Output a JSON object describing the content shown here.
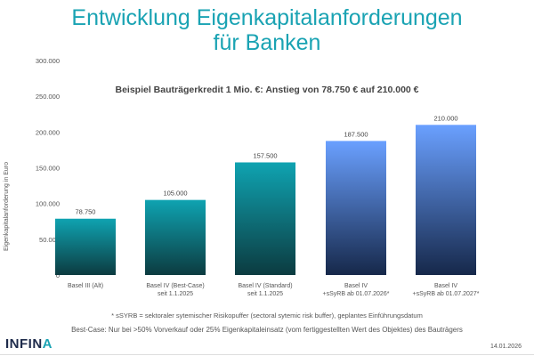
{
  "title_line1": "Entwicklung Eigenkapitalanforderungen",
  "title_line2": "für Banken",
  "chart_data": {
    "type": "bar",
    "title": "Beispiel Bauträgerkredit 1 Mio. €: Anstieg von 78.750 € auf 210.000 €",
    "ylabel": "Eigenkapitalanforderung in Euro",
    "xlabel": "",
    "ylim": [
      0,
      300000
    ],
    "yticks": [
      "0",
      "50.000",
      "100.000",
      "150.000",
      "200.000",
      "250.000",
      "300.000"
    ],
    "ytick_values": [
      0,
      50000,
      100000,
      150000,
      200000,
      250000,
      300000
    ],
    "grid": false,
    "categories": [
      [
        "Basel III (Alt)"
      ],
      [
        "Basel IV (Best-Case)",
        "seit 1.1.2025"
      ],
      [
        "Basel IV (Standard)",
        "seit 1.1.2025"
      ],
      [
        "Basel IV",
        "+sSyRB ab 01.07.2026*"
      ],
      [
        "Basel IV",
        "+sSyRB ab 01.07.2027*"
      ]
    ],
    "values": [
      78750,
      105000,
      157500,
      187500,
      210000
    ],
    "data_labels": [
      "78.750",
      "105.000",
      "157.500",
      "187.500",
      "210.000"
    ],
    "colors": [
      [
        "#0fa3b1",
        "#0c3b40"
      ],
      [
        "#0fa3b1",
        "#0c3b40"
      ],
      [
        "#0fa3b1",
        "#0c3b40"
      ],
      [
        "#6aa0ff",
        "#16284a"
      ],
      [
        "#6aa0ff",
        "#16284a"
      ]
    ]
  },
  "footnote": "* sSYRB = sektoraler sytemischer Risikopuffer (sectoral sytemic risk buffer), geplantes Einführungsdatum",
  "note": "Best-Case: Nur bei >50% Vorverkauf oder 25% Eigenkapitaleinsatz (vom fertiggestellten Wert des Objektes) des Bauträgers",
  "logo_text": "INFINA",
  "date": "14.01.2026"
}
